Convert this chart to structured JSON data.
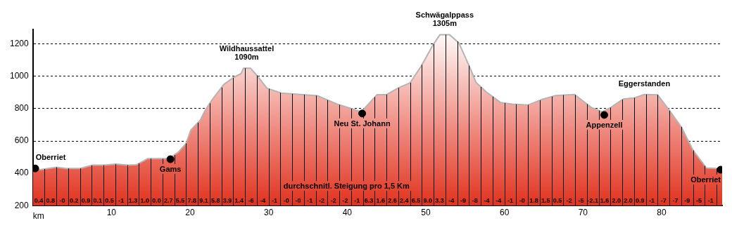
{
  "chart_data": {
    "type": "area",
    "xlabel": "km",
    "xlim": [
      0,
      87.7
    ],
    "xticks": [
      10,
      20,
      30,
      40,
      50,
      60,
      70,
      80
    ],
    "ylim": [
      200,
      1290
    ],
    "yticks": [
      200,
      400,
      600,
      800,
      1000,
      1200
    ],
    "grid": "y",
    "legend": false,
    "series": [
      {
        "color": "#e2321e",
        "x": [
          0,
          0.9,
          3.0,
          4.2,
          6.0,
          7.6,
          9.1,
          10.6,
          12.1,
          13.2,
          14.6,
          17.3,
          18.5,
          19.5,
          20.1,
          21.3,
          21.9,
          22.8,
          24.3,
          25.6,
          26.5,
          26.8,
          27.7,
          28.6,
          29.8,
          31.6,
          34.1,
          36.2,
          38.7,
          40.2,
          41.8,
          43.8,
          45.0,
          46.5,
          48.0,
          49.4,
          50.9,
          51.8,
          53.0,
          54.2,
          55.6,
          56.4,
          57.7,
          59.5,
          61.0,
          63.0,
          64.8,
          66.5,
          68.9,
          71.0,
          72.4,
          73.6,
          75.1,
          76.6,
          77.8,
          79.5,
          81.0,
          82.5,
          84.0,
          85.7,
          87.2,
          87.7
        ],
        "values": [
          430,
          422,
          437,
          430,
          430,
          450,
          450,
          457,
          450,
          453,
          490,
          490,
          530,
          585,
          668,
          728,
          788,
          855,
          950,
          995,
          1017,
          1050,
          1050,
          1000,
          926,
          896,
          888,
          880,
          828,
          805,
          780,
          887,
          887,
          928,
          960,
          1062,
          1193,
          1258,
          1258,
          1207,
          1055,
          961,
          903,
          838,
          828,
          823,
          857,
          881,
          888,
          809,
          780,
          809,
          859,
          867,
          888,
          885,
          788,
          687,
          542,
          433,
          429,
          420
        ]
      },
      {
        "type": "scatter",
        "color": "#000000",
        "marker": "circle",
        "x": [
          0.3,
          17.5,
          41.9,
          72.7,
          87.5
        ],
        "values": [
          430,
          487,
          770,
          761,
          422
        ]
      }
    ],
    "annotations": [
      {
        "text": "Oberriet",
        "x": 0.3,
        "y": 430
      },
      {
        "text": "Gams",
        "x": 17.5,
        "y": 487
      },
      {
        "text": "Wildhaussattel\n1090m",
        "x": 27.2,
        "y": 1050
      },
      {
        "text": "Neu St. Johann",
        "x": 41.9,
        "y": 770
      },
      {
        "text": "Schwägalppass\n1305m",
        "x": 52.4,
        "y": 1258
      },
      {
        "text": "Appenzell",
        "x": 72.7,
        "y": 761
      },
      {
        "text": "Eggerstanden",
        "x": 77.8,
        "y": 888
      },
      {
        "text": "Oberriet",
        "x": 87.5,
        "y": 422
      },
      "durchschnitl. Steigung pro 1,5 Km",
      {
        "text": "0.4",
        "x": 0.75,
        "y": 200
      },
      {
        "text": "0.8",
        "x": 2.25,
        "y": 200
      },
      {
        "text": "-0",
        "x": 3.75,
        "y": 200
      },
      {
        "text": "0.2",
        "x": 5.25,
        "y": 200
      },
      {
        "text": "0.9",
        "x": 6.75,
        "y": 200
      },
      {
        "text": "0.1",
        "x": 8.25,
        "y": 200
      },
      {
        "text": "0.5",
        "x": 9.75,
        "y": 200
      },
      {
        "text": "-1",
        "x": 11.25,
        "y": 200
      },
      {
        "text": "1.3",
        "x": 12.75,
        "y": 200
      },
      {
        "text": "1.0",
        "x": 14.25,
        "y": 200
      },
      {
        "text": "0.0",
        "x": 15.75,
        "y": 200
      },
      {
        "text": "2.7",
        "x": 17.25,
        "y": 200
      },
      {
        "text": "5.5",
        "x": 18.75,
        "y": 200
      },
      {
        "text": "7.8",
        "x": 20.25,
        "y": 200
      },
      {
        "text": "9.1",
        "x": 21.75,
        "y": 200
      },
      {
        "text": "5.8",
        "x": 23.25,
        "y": 200
      },
      {
        "text": "3.9",
        "x": 24.75,
        "y": 200
      },
      {
        "text": "1.4",
        "x": 26.25,
        "y": 200
      },
      {
        "text": "-6",
        "x": 27.75,
        "y": 200
      },
      {
        "text": "-4",
        "x": 29.25,
        "y": 200
      },
      {
        "text": "-1",
        "x": 30.75,
        "y": 200
      },
      {
        "text": "-0",
        "x": 32.25,
        "y": 200
      },
      {
        "text": "-0",
        "x": 33.75,
        "y": 200
      },
      {
        "text": "-1",
        "x": 35.25,
        "y": 200
      },
      {
        "text": "-2",
        "x": 36.75,
        "y": 200
      },
      {
        "text": "-2",
        "x": 38.25,
        "y": 200
      },
      {
        "text": "-2",
        "x": 39.75,
        "y": 200
      },
      {
        "text": "-1",
        "x": 41.25,
        "y": 200
      },
      {
        "text": "6.3",
        "x": 42.75,
        "y": 200
      },
      {
        "text": "1.6",
        "x": 44.25,
        "y": 200
      },
      {
        "text": "2.6",
        "x": 45.75,
        "y": 200
      },
      {
        "text": "2.4",
        "x": 47.25,
        "y": 200
      },
      {
        "text": "6.5",
        "x": 48.75,
        "y": 200
      },
      {
        "text": "9.0",
        "x": 50.25,
        "y": 200
      },
      {
        "text": "3.3",
        "x": 51.75,
        "y": 200
      },
      {
        "text": "-4",
        "x": 53.25,
        "y": 200
      },
      {
        "text": "-9",
        "x": 54.75,
        "y": 200
      },
      {
        "text": "-8",
        "x": 56.25,
        "y": 200
      },
      {
        "text": "-4",
        "x": 57.75,
        "y": 200
      },
      {
        "text": "-4",
        "x": 59.25,
        "y": 200
      },
      {
        "text": "-1",
        "x": 60.75,
        "y": 200
      },
      {
        "text": "-0",
        "x": 62.25,
        "y": 200
      },
      {
        "text": "1.8",
        "x": 63.75,
        "y": 200
      },
      {
        "text": "1.5",
        "x": 65.25,
        "y": 200
      },
      {
        "text": "0.5",
        "x": 66.75,
        "y": 200
      },
      {
        "text": "-2",
        "x": 68.25,
        "y": 200
      },
      {
        "text": "-5",
        "x": 69.75,
        "y": 200
      },
      {
        "text": "-2.1",
        "x": 71.25,
        "y": 200
      },
      {
        "text": "1.6",
        "x": 72.75,
        "y": 200
      },
      {
        "text": "2.0",
        "x": 74.25,
        "y": 200
      },
      {
        "text": "2.0",
        "x": 75.75,
        "y": 200
      },
      {
        "text": "0.9",
        "x": 77.25,
        "y": 200
      },
      {
        "text": "-1",
        "x": 78.75,
        "y": 200
      },
      {
        "text": "-7",
        "x": 80.25,
        "y": 200
      },
      {
        "text": "-7",
        "x": 81.75,
        "y": 200
      },
      {
        "text": "-9",
        "x": 83.25,
        "y": 200
      },
      {
        "text": "-5",
        "x": 84.75,
        "y": 200
      },
      {
        "text": "-1",
        "x": 86.25,
        "y": 200
      }
    ]
  }
}
